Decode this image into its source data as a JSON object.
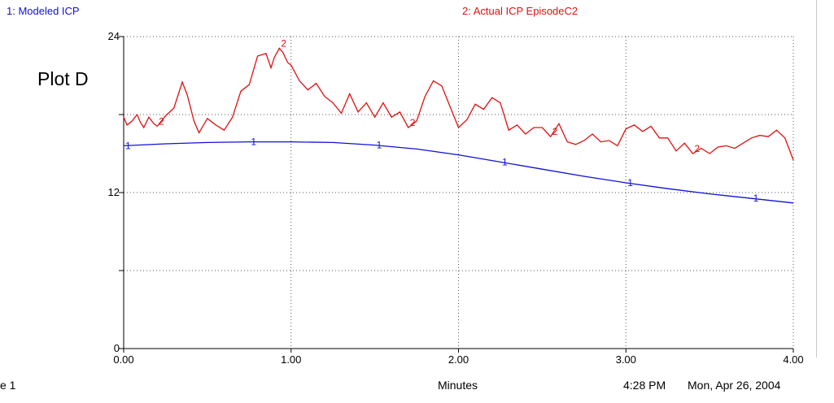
{
  "page_label": "e 1",
  "time": "4:28 PM",
  "date": "Mon, Apr 26, 2004",
  "chart_data": {
    "type": "line",
    "title": "Plot D",
    "xlabel": "Minutes",
    "ylabel": "",
    "xlim": [
      0,
      4
    ],
    "ylim": [
      0,
      24
    ],
    "x_ticks": [
      "0.00",
      "1.00",
      "2.00",
      "3.00",
      "4.00"
    ],
    "y_ticks": [
      "0",
      "12",
      "24"
    ],
    "grid": true,
    "series": [
      {
        "name": "1: Modeled ICP",
        "marker": "1",
        "color": "#1010d8",
        "x": [
          0,
          0.25,
          0.5,
          0.75,
          1.0,
          1.25,
          1.5,
          1.75,
          2.0,
          2.25,
          2.5,
          2.75,
          3.0,
          3.25,
          3.5,
          3.75,
          4.0
        ],
        "y": [
          15.6,
          15.75,
          15.85,
          15.9,
          15.9,
          15.85,
          15.65,
          15.35,
          14.9,
          14.35,
          13.8,
          13.25,
          12.75,
          12.3,
          11.9,
          11.55,
          11.2
        ]
      },
      {
        "name": "2: Actual ICP  EpisodeC2",
        "marker": "2",
        "color": "#e01010",
        "x": [
          0,
          0.02,
          0.05,
          0.08,
          0.1,
          0.12,
          0.15,
          0.18,
          0.2,
          0.25,
          0.3,
          0.35,
          0.38,
          0.42,
          0.45,
          0.5,
          0.55,
          0.6,
          0.65,
          0.7,
          0.75,
          0.8,
          0.85,
          0.88,
          0.9,
          0.93,
          0.95,
          0.98,
          1.0,
          1.05,
          1.1,
          1.15,
          1.2,
          1.25,
          1.3,
          1.35,
          1.4,
          1.45,
          1.5,
          1.55,
          1.6,
          1.65,
          1.7,
          1.75,
          1.8,
          1.85,
          1.9,
          1.95,
          2.0,
          2.05,
          2.1,
          2.15,
          2.2,
          2.25,
          2.3,
          2.35,
          2.4,
          2.45,
          2.5,
          2.55,
          2.6,
          2.65,
          2.7,
          2.75,
          2.8,
          2.85,
          2.9,
          2.95,
          3.0,
          3.05,
          3.1,
          3.15,
          3.2,
          3.25,
          3.3,
          3.35,
          3.4,
          3.45,
          3.5,
          3.55,
          3.6,
          3.65,
          3.7,
          3.75,
          3.8,
          3.85,
          3.9,
          3.95,
          4.0
        ],
        "y": [
          17.8,
          17.2,
          17.5,
          18.0,
          17.4,
          17.0,
          17.8,
          17.3,
          17.1,
          17.9,
          18.5,
          20.5,
          19.5,
          17.5,
          16.6,
          17.7,
          17.2,
          16.8,
          17.8,
          19.8,
          20.3,
          22.5,
          22.7,
          21.6,
          22.4,
          23.1,
          22.8,
          22.0,
          21.8,
          20.6,
          19.9,
          20.4,
          19.4,
          18.9,
          18.1,
          19.6,
          18.2,
          18.9,
          17.8,
          18.9,
          17.8,
          18.2,
          17.0,
          17.5,
          19.4,
          20.6,
          20.2,
          18.6,
          17.0,
          17.6,
          18.8,
          18.4,
          19.3,
          18.9,
          16.8,
          17.2,
          16.5,
          17.0,
          17.0,
          16.3,
          17.3,
          15.9,
          15.7,
          16.0,
          16.5,
          15.9,
          16.0,
          15.6,
          16.9,
          17.2,
          16.7,
          17.1,
          16.2,
          16.2,
          15.2,
          15.8,
          15.0,
          15.4,
          15.0,
          15.5,
          15.6,
          15.4,
          15.8,
          16.2,
          16.4,
          16.3,
          16.8,
          16.2,
          14.5
        ]
      }
    ]
  }
}
